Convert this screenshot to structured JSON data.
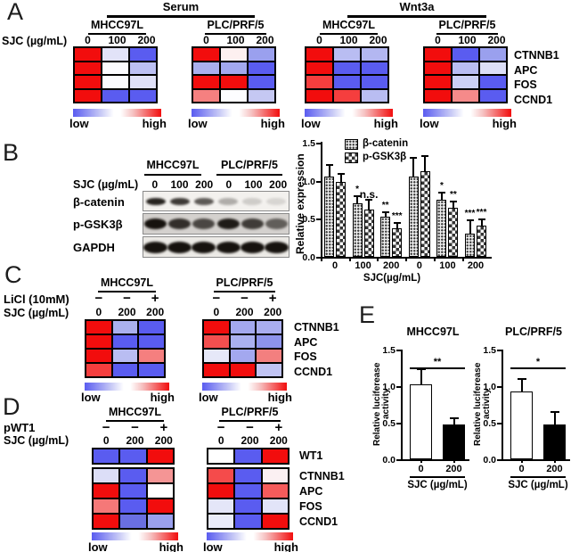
{
  "palette": {
    "heat_low_blue": "#5a5cf0",
    "heat_high_red": "#f20d0d",
    "bar_black": "#000000",
    "bar_white": "#ffffff"
  },
  "panelA": {
    "label": "A",
    "sjc_label": "SJC (µg/mL)",
    "gene_labels": [
      "CTNNB1",
      "APC",
      "FOS",
      "CCND1"
    ],
    "scale_low": "low",
    "scale_high": "high",
    "groups": [
      {
        "title": "Serum",
        "blocks": [
          {
            "cell_line": "MHCC97L",
            "doses": [
              "0",
              "100",
              "200"
            ],
            "cells": [
              [
                "#f20d0d",
                "#e2e3f8",
                "#5a5cf0"
              ],
              [
                "#f20d0d",
                "#fbfbfe",
                "#bcc0f3"
              ],
              [
                "#f20d0d",
                "#fbfbfe",
                "#e0e1f8"
              ],
              [
                "#f20d0d",
                "#5a5cf0",
                "#5a5cf0"
              ]
            ]
          },
          {
            "cell_line": "PLC/PRF/5",
            "doses": [
              "0",
              "100",
              "200"
            ],
            "cells": [
              [
                "#f20d0d",
                "#fdf0f0",
                "#9aa0ee"
              ],
              [
                "#aab0ee",
                "#a3a8ef",
                "#5a5cf0"
              ],
              [
                "#f20d0d",
                "#f20d0d",
                "#5a5cf0"
              ],
              [
                "#f58080",
                "#fdfdff",
                "#c5c8f3"
              ]
            ]
          }
        ]
      },
      {
        "title": "Wnt3a",
        "blocks": [
          {
            "cell_line": "MHCC97L",
            "doses": [
              "0",
              "100",
              "200"
            ],
            "cells": [
              [
                "#f20d0d",
                "#b9bdf2",
                "#b3b7f1"
              ],
              [
                "#f20d0d",
                "#5a5cf0",
                "#5a5cf0"
              ],
              [
                "#f53e3e",
                "#5a5cf0",
                "#5a5cf0"
              ],
              [
                "#f20d0d",
                "#f53e3e",
                "#b9bdf2"
              ]
            ]
          },
          {
            "cell_line": "PLC/PRF/5",
            "doses": [
              "0",
              "100",
              "200"
            ],
            "cells": [
              [
                "#f20d0d",
                "#5a5cf0",
                "#9aa0ee"
              ],
              [
                "#f20d0d",
                "#b9bdf2",
                "#dcdef7"
              ],
              [
                "#f20d0d",
                "#ccd0f5",
                "#5a5cf0"
              ],
              [
                "#f20d0d",
                "#f58a8a",
                "#5a5cf0"
              ]
            ]
          }
        ]
      }
    ]
  },
  "panelB": {
    "label": "B",
    "blot": {
      "cell_lines": [
        "MHCC97L",
        "PLC/PRF/5"
      ],
      "sjc_label": "SJC (µg/mL)",
      "doses": [
        "0",
        "100",
        "200",
        "0",
        "100",
        "200"
      ],
      "rows": [
        {
          "name": "β-catenin",
          "bands": [
            0.92,
            0.82,
            0.68,
            0.3,
            0.16,
            0.12
          ]
        },
        {
          "name": "p-GSK3β",
          "bands": [
            1,
            0.85,
            0.72,
            0.95,
            0.78,
            0.6
          ]
        },
        {
          "name": "GAPDH",
          "bands": [
            1,
            1,
            1,
            1,
            1,
            1
          ]
        }
      ]
    },
    "chart": {
      "ylabel": "Relative expression",
      "xlabel": "SJC(µg/mL)",
      "yticks": [
        "1.5",
        "1.0",
        "0.5",
        "0.0"
      ],
      "ylim": [
        0,
        1.5
      ],
      "legend": [
        "β-catenin",
        "p-GSK3β"
      ],
      "groups": [
        {
          "tick": "0",
          "bars": [
            {
              "value": 1.06,
              "err": 0.15,
              "sig": ""
            },
            {
              "value": 0.99,
              "err": 0.1,
              "sig": ""
            }
          ]
        },
        {
          "tick": "100",
          "bars": [
            {
              "value": 0.7,
              "err": 0.1,
              "sig": "*"
            },
            {
              "value": 0.62,
              "err": 0.13,
              "sig": "n.s."
            }
          ]
        },
        {
          "tick": "200",
          "bars": [
            {
              "value": 0.53,
              "err": 0.06,
              "sig": "**"
            },
            {
              "value": 0.38,
              "err": 0.06,
              "sig": "***"
            }
          ]
        },
        {
          "tick": "0",
          "bars": [
            {
              "value": 1.06,
              "err": 0.24,
              "sig": ""
            },
            {
              "value": 1.13,
              "err": 0.2,
              "sig": ""
            }
          ]
        },
        {
          "tick": "100",
          "bars": [
            {
              "value": 0.75,
              "err": 0.09,
              "sig": "*"
            },
            {
              "value": 0.65,
              "err": 0.08,
              "sig": "**"
            }
          ]
        },
        {
          "tick": "200",
          "bars": [
            {
              "value": 0.31,
              "err": 0.17,
              "sig": "***"
            },
            {
              "value": 0.41,
              "err": 0.08,
              "sig": "***"
            }
          ]
        }
      ]
    }
  },
  "panelC": {
    "label": "C",
    "licl_label": "LiCl (10mM)",
    "sjc_label": "SJC (µg/mL)",
    "gene_labels": [
      "CTNNB1",
      "APC",
      "FOS",
      "CCND1"
    ],
    "scale_low": "low",
    "scale_high": "high",
    "blocks": [
      {
        "cell_line": "MHCC97L",
        "signs": [
          "−",
          "−",
          "+"
        ],
        "doses": [
          "0",
          "200",
          "200"
        ],
        "cells": [
          [
            "#f20d0d",
            "#aab0ee",
            "#5a5cf0"
          ],
          [
            "#f20d0d",
            "#5a5cf0",
            "#5a5cf0"
          ],
          [
            "#f20d0d",
            "#b9bdf2",
            "#f57f7f"
          ],
          [
            "#f53e3e",
            "#5a5cf0",
            "#5a5cf0"
          ]
        ]
      },
      {
        "cell_line": "PLC/PRF/5",
        "signs": [
          "−",
          "−",
          "+"
        ],
        "doses": [
          "0",
          "200",
          "200"
        ],
        "cells": [
          [
            "#f20d0d",
            "#a3a8ef",
            "#a9adf0"
          ],
          [
            "#f34f4f",
            "#aab0f0",
            "#8d93ec"
          ],
          [
            "#e6e8f8",
            "#a3a8ef",
            "#f37f7f"
          ],
          [
            "#f20d0d",
            "#f20d0d",
            "#c0c3f3"
          ]
        ]
      }
    ]
  },
  "panelD": {
    "label": "D",
    "pwt1_label": "pWT1",
    "sjc_label": "SJC (µg/mL)",
    "gene_labels": [
      "WT1",
      "CTNNB1",
      "APC",
      "FOS",
      "CCND1"
    ],
    "scale_low": "low",
    "scale_high": "high",
    "blocks": [
      {
        "cell_line": "MHCC97L",
        "signs": [
          "−",
          "−",
          "+"
        ],
        "doses": [
          "0",
          "200",
          "200"
        ],
        "wt1_cells": [
          "#5a5cf0",
          "#5a5cf0",
          "#f20d0d"
        ],
        "cells": [
          [
            "#dcdef7",
            "#5a5cf0",
            "#f59595"
          ],
          [
            "#f20d0d",
            "#5a5cf0",
            "#ffffff"
          ],
          [
            "#f57878",
            "#5a5cf0",
            "#f20d0d"
          ],
          [
            "#f20d0d",
            "#6a6fe2",
            "#9aa0ee"
          ]
        ]
      },
      {
        "cell_line": "PLC/PRF/5",
        "signs": [
          "−",
          "−",
          "+"
        ],
        "doses": [
          "0",
          "200",
          "200"
        ],
        "wt1_cells": [
          "#ffffff",
          "#5a5cf0",
          "#f20d0d"
        ],
        "cells": [
          [
            "#f54b4b",
            "#5a5cf0",
            "#fbf0f2"
          ],
          [
            "#f20d0d",
            "#5a5cf0",
            "#f55b5b"
          ],
          [
            "#e4e6f8",
            "#5a5cf0",
            "#e2e4f8"
          ],
          [
            "#eaecfa",
            "#5a5cf0",
            "#f20d0d"
          ]
        ]
      }
    ]
  },
  "panelE": {
    "label": "E",
    "charts": [
      {
        "title": "MHCC97L",
        "ylabel": "Relative luciferease activity",
        "xlabel": "SJC (µg/mL)",
        "yticks": [
          "1.5",
          "1.0",
          "0.5",
          "0.0"
        ],
        "bars": [
          {
            "tick": "0",
            "value": 1.03,
            "err": 0.2,
            "fill": "#ffffff"
          },
          {
            "tick": "200",
            "value": 0.47,
            "err": 0.08,
            "fill": "#000000"
          }
        ],
        "sig": "**"
      },
      {
        "title": "PLC/PRF/5",
        "ylabel": "Relative luciferease activity",
        "xlabel": "SJC (µg/mL)",
        "yticks": [
          "1.5",
          "1.0",
          "0.5",
          "0.0"
        ],
        "bars": [
          {
            "tick": "0",
            "value": 0.93,
            "err": 0.16,
            "fill": "#ffffff"
          },
          {
            "tick": "200",
            "value": 0.48,
            "err": 0.16,
            "sig": "",
            "fill": "#000000"
          }
        ],
        "sig": "*"
      }
    ]
  },
  "chart_data": [
    {
      "type": "bar",
      "title": "",
      "ylabel": "Relative expression",
      "xlabel": "SJC(µg/mL)",
      "categories": [
        "0",
        "100",
        "200",
        "0",
        "100",
        "200"
      ],
      "ylim": [
        0,
        1.5
      ],
      "series": [
        {
          "name": "β-catenin",
          "values": [
            1.06,
            0.7,
            0.53,
            1.06,
            0.75,
            0.31
          ],
          "errors": [
            0.15,
            0.1,
            0.06,
            0.24,
            0.09,
            0.17
          ]
        },
        {
          "name": "p-GSK3β",
          "values": [
            0.99,
            0.62,
            0.38,
            1.13,
            0.65,
            0.41
          ],
          "errors": [
            0.1,
            0.13,
            0.06,
            0.2,
            0.08,
            0.08
          ]
        }
      ],
      "annotations": [
        "",
        "*",
        "n.s.",
        "**",
        "***",
        "",
        "*",
        "**",
        "***",
        "***"
      ],
      "legend_position": "top-left",
      "grid": false
    },
    {
      "type": "bar",
      "title": "MHCC97L",
      "ylabel": "Relative luciferease activity",
      "xlabel": "SJC (µg/mL)",
      "categories": [
        "0",
        "200"
      ],
      "values": [
        1.03,
        0.47
      ],
      "errors": [
        0.2,
        0.08
      ],
      "ylim": [
        0,
        1.5
      ],
      "annotations": [
        "**"
      ],
      "grid": false
    },
    {
      "type": "bar",
      "title": "PLC/PRF/5",
      "ylabel": "Relative luciferease activity",
      "xlabel": "SJC (µg/mL)",
      "categories": [
        "0",
        "200"
      ],
      "values": [
        0.93,
        0.48
      ],
      "errors": [
        0.16,
        0.16
      ],
      "ylim": [
        0,
        1.5
      ],
      "annotations": [
        "*"
      ],
      "grid": false
    }
  ]
}
